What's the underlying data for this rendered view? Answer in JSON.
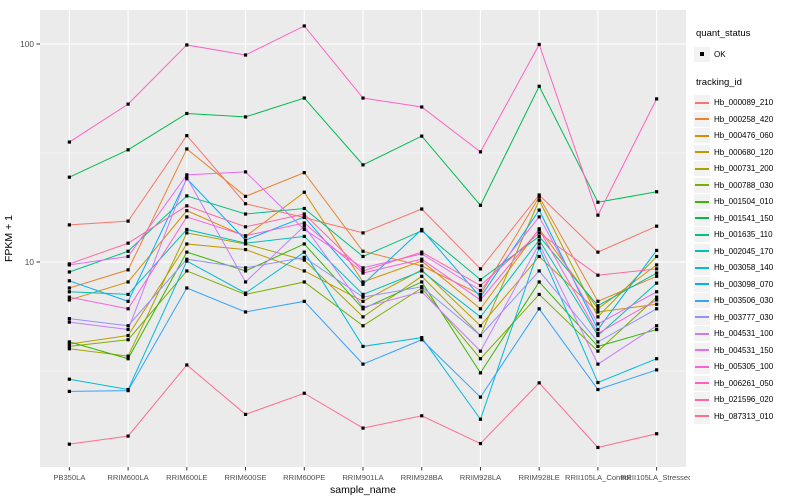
{
  "legend": {
    "quant_status_title": "quant_status",
    "quant_status_items": [
      "OK"
    ],
    "tracking_id_title": "tracking_id"
  },
  "chart_data": {
    "type": "line",
    "title": "",
    "xlabel": "sample_name",
    "ylabel": "FPKM + 1",
    "y_scale": "log10",
    "y_ticks": [
      100,
      10
    ],
    "y_minor": [
      31.62,
      3.162
    ],
    "ylim": [
      1.15,
      143
    ],
    "grid": true,
    "legend_position": "right",
    "panel_bg": "#EBEBEB",
    "grid_color": "#FFFFFF",
    "point_color": "#000000",
    "tick_label_color": "#4D4D4D",
    "categories": [
      "PB350LA",
      "RRIM600LA",
      "RRIM600LE",
      "RRIM600SE",
      "RRIM600PE",
      "RRIM901LA",
      "RRIM928BA",
      "RRIM928LA",
      "RRIM928LE",
      "RRII105LA_Control",
      "RRII105LA_Stressed"
    ],
    "series": [
      {
        "name": "Hb_000089_210",
        "color": "#F8766D",
        "values": [
          14.8,
          15.4,
          38.0,
          18.5,
          16.0,
          13.6,
          17.5,
          9.3,
          20.3,
          11.1,
          14.6
        ]
      },
      {
        "name": "Hb_000258_420",
        "color": "#EA8331",
        "values": [
          7.6,
          9.2,
          33.0,
          20.0,
          25.7,
          11.2,
          9.6,
          7.1,
          19.9,
          6.6,
          8.6
        ]
      },
      {
        "name": "Hb_000476_060",
        "color": "#D89000",
        "values": [
          6.7,
          8.1,
          17.2,
          13.1,
          20.9,
          8.1,
          10.1,
          6.1,
          14.2,
          6.1,
          9.7
        ]
      },
      {
        "name": "Hb_000680_120",
        "color": "#C09B00",
        "values": [
          4.2,
          4.6,
          12.1,
          11.4,
          9.1,
          6.6,
          9.2,
          5.1,
          10.6,
          5.9,
          6.4
        ]
      },
      {
        "name": "Hb_000731_200",
        "color": "#A3A500",
        "values": [
          4.0,
          3.7,
          13.6,
          12.1,
          10.2,
          5.6,
          8.6,
          4.6,
          19.2,
          5.6,
          10.6
        ]
      },
      {
        "name": "Hb_000788_030",
        "color": "#7CAE00",
        "values": [
          4.1,
          4.4,
          9.1,
          7.1,
          8.1,
          5.1,
          7.6,
          3.6,
          7.1,
          3.9,
          6.9
        ]
      },
      {
        "name": "Hb_001504_010",
        "color": "#39B600",
        "values": [
          4.3,
          3.6,
          11.1,
          9.1,
          12.1,
          6.1,
          8.1,
          3.1,
          8.1,
          4.1,
          4.9
        ]
      },
      {
        "name": "Hb_001541_150",
        "color": "#00BB4E",
        "values": [
          24.5,
          32.7,
          48.0,
          46.3,
          56.5,
          27.9,
          37.8,
          18.2,
          64.0,
          18.8,
          21.0
        ]
      },
      {
        "name": "Hb_001635_110",
        "color": "#00C087",
        "values": [
          9.0,
          11.2,
          20.1,
          16.6,
          17.6,
          10.6,
          13.9,
          8.3,
          13.1,
          6.3,
          8.9
        ]
      },
      {
        "name": "Hb_002045_170",
        "color": "#00C0B8",
        "values": [
          7.3,
          7.1,
          14.1,
          12.2,
          13.1,
          7.1,
          9.1,
          5.6,
          12.6,
          4.6,
          8.0
        ]
      },
      {
        "name": "Hb_003058_140",
        "color": "#00BCD8",
        "values": [
          2.9,
          2.6,
          10.1,
          7.2,
          11.1,
          4.1,
          4.5,
          1.9,
          11.6,
          2.8,
          3.6
        ]
      },
      {
        "name": "Hb_003098_070",
        "color": "#00B0F6",
        "values": [
          8.2,
          6.6,
          24.1,
          12.6,
          16.1,
          7.9,
          14.1,
          6.9,
          17.3,
          4.9,
          11.3
        ]
      },
      {
        "name": "Hb_003506_030",
        "color": "#35A2FF",
        "values": [
          2.55,
          2.57,
          7.6,
          5.9,
          6.6,
          3.4,
          4.4,
          2.4,
          6.1,
          2.6,
          3.2
        ]
      },
      {
        "name": "Hb_003777_030",
        "color": "#9590FF",
        "values": [
          5.5,
          5.1,
          10.3,
          9.4,
          10.5,
          6.9,
          7.7,
          4.6,
          9.1,
          4.3,
          6.1
        ]
      },
      {
        "name": "Hb_004531_100",
        "color": "#C77CFF",
        "values": [
          5.3,
          4.9,
          24.4,
          8.1,
          14.6,
          6.2,
          7.3,
          3.9,
          12.1,
          3.4,
          5.1
        ]
      },
      {
        "name": "Hb_004531_150",
        "color": "#E76BF3",
        "values": [
          9.7,
          10.6,
          25.1,
          25.9,
          14.1,
          9.4,
          10.9,
          7.4,
          16.1,
          5.2,
          7.3
        ]
      },
      {
        "name": "Hb_005305_100",
        "color": "#FA62DB",
        "values": [
          6.9,
          6.1,
          16.1,
          13.2,
          15.1,
          8.9,
          10.3,
          6.7,
          14.1,
          4.7,
          6.7
        ]
      },
      {
        "name": "Hb_006261_050",
        "color": "#FF61C3",
        "values": [
          35.5,
          53.0,
          99.0,
          89.0,
          121.0,
          56.5,
          51.4,
          32.0,
          99.5,
          16.4,
          56.0
        ]
      },
      {
        "name": "Hb_021596_020",
        "color": "#FF67A4",
        "values": [
          9.8,
          12.2,
          18.1,
          14.5,
          16.6,
          9.1,
          11.1,
          7.8,
          13.6,
          8.7,
          9.3
        ]
      },
      {
        "name": "Hb_087313_010",
        "color": "#FF6C90",
        "values": [
          1.46,
          1.59,
          3.37,
          2.0,
          2.5,
          1.73,
          1.97,
          1.47,
          2.79,
          1.41,
          1.63
        ]
      }
    ]
  }
}
